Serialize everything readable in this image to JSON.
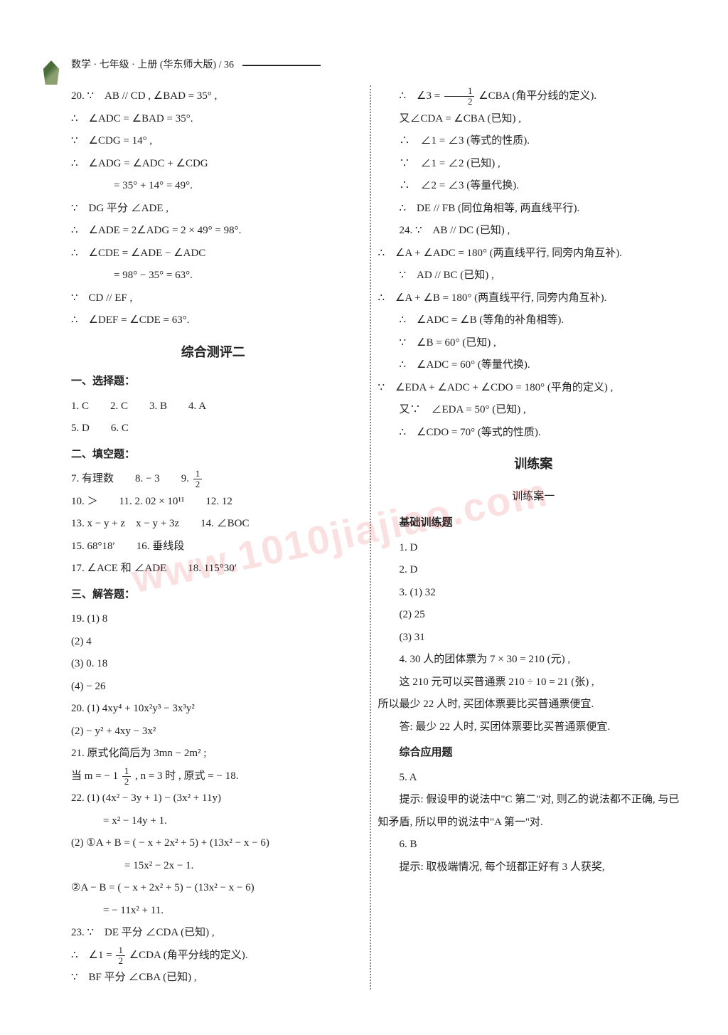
{
  "header": {
    "text": "数学 · 七年级 · 上册 (华东师大版)  /  36"
  },
  "left": {
    "l1": "20. ∵　AB // CD , ∠BAD = 35° ,",
    "l2": "∴　∠ADC = ∠BAD = 35°.",
    "l3": "∵　∠CDG = 14° ,",
    "l4": "∴　∠ADG = ∠ADC + ∠CDG",
    "l5": "　　　　= 35° + 14° = 49°.",
    "l6": "∵　DG 平分 ∠ADE ,",
    "l7": "∴　∠ADE = 2∠ADG = 2 × 49° = 98°.",
    "l8": "∴　∠CDE = ∠ADE − ∠ADC",
    "l9": "　　　　= 98° − 35° = 63°.",
    "l10": "∵　CD // EF ,",
    "l11": "∴　∠DEF = ∠CDE = 63°.",
    "title1": "综合测评二",
    "s1": "一、选择题：",
    "s1a": "1. C　　2. C　　3. B　　4. A",
    "s1b": "5. D　　6. C",
    "s2": "二、填空题：",
    "s2a_pre": "7. 有理数　　8. − 3　　9. ",
    "s2b": "10. ＞　　11. 2. 02 × 10¹¹　　12. 12",
    "s2c": "13. x − y + z　x − y + 3z　　14. ∠BOC",
    "s2d": "15. 68°18′　　16. 垂线段",
    "s2e": "17. ∠ACE 和 ∠ADE　　18. 115°30′",
    "s3": "三、解答题：",
    "s3a": "19. (1) 8",
    "s3b": "(2) 4",
    "s3c": "(3) 0. 18",
    "s3d": "(4) − 26",
    "s3e": "20. (1) 4xy⁴ + 10x²y³ − 3x³y²",
    "s3f": "(2) − y² + 4xy − 3x²",
    "s3g": "21. 原式化简后为 3mn − 2m² ;",
    "s3h_pre": "当 m = − 1 ",
    "s3h_post": " , n = 3 时 , 原式 = − 18.",
    "s3i": "22. (1) (4x² − 3y + 1) − (3x² + 11y)",
    "s3j": "　　　= x² − 14y + 1.",
    "s3k": "(2) ①A + B = ( − x + 2x² + 5) + (13x² − x − 6)",
    "s3l": "　　　　　= 15x² − 2x − 1.",
    "s3m": "②A − B = ( − x + 2x² + 5) − (13x² − x − 6)",
    "s3n": "　　　= − 11x² + 11.",
    "s3o": "23. ∵　DE 平分 ∠CDA (已知) ,",
    "s3p_pre": "∴　∠1 = ",
    "s3p_post": " ∠CDA (角平分线的定义).",
    "s3q": "∵　BF 平分 ∠CBA (已知) ,"
  },
  "right": {
    "r1_pre": "∴　∠3 = ",
    "r1_post": " ∠CBA (角平分线的定义).",
    "r2": "又∠CDA = ∠CBA (已知) ,",
    "r3": "∴　∠1 = ∠3 (等式的性质).",
    "r4": "∵　∠1 = ∠2 (已知) ,",
    "r5": "∴　∠2 = ∠3 (等量代换).",
    "r6": "∴　DE // FB (同位角相等, 两直线平行).",
    "r7": "24. ∵　AB // DC (已知) ,",
    "r8": "∴　∠A + ∠ADC = 180° (两直线平行, 同旁内角互补).",
    "r9": "∵　AD // BC (已知) ,",
    "r10": "∴　∠A + ∠B = 180° (两直线平行, 同旁内角互补).",
    "r11": "∴　∠ADC = ∠B (等角的补角相等).",
    "r12": "∵　∠B = 60° (已知) ,",
    "r13": "∴　∠ADC = 60° (等量代换).",
    "r14": "∵　∠EDA + ∠ADC + ∠CDO = 180° (平角的定义) ,",
    "r15": "又∵　∠EDA = 50° (已知) ,",
    "r16": "∴　∠CDO = 70° (等式的性质).",
    "title2": "训练案",
    "title3": "训练案一",
    "t1": "基础训练题",
    "t1a": "1. D",
    "t1b": "2. D",
    "t1c": "3. (1) 32",
    "t1d": "(2) 25",
    "t1e": "(3) 31",
    "t1f": "4. 30 人的团体票为 7 × 30 = 210 (元) ,",
    "t1g": "这 210 元可以买普通票 210 ÷ 10 = 21 (张) ,",
    "t1h": "所以最少 22 人时, 买团体票要比买普通票便宜.",
    "t1i": "答: 最少 22 人时, 买团体票要比买普通票便宜.",
    "t2": "综合应用题",
    "t2a": "5. A",
    "t2b": "提示: 假设甲的说法中\"C 第二\"对, 则乙的说法都不正确, 与已知矛盾, 所以甲的说法中\"A 第一\"对.",
    "t2c": "6. B",
    "t2d": "提示: 取极端情况, 每个班都正好有 3 人获奖,"
  },
  "watermark": "www.1010jiajiao.com",
  "frac": {
    "one": "1",
    "two": "2"
  }
}
